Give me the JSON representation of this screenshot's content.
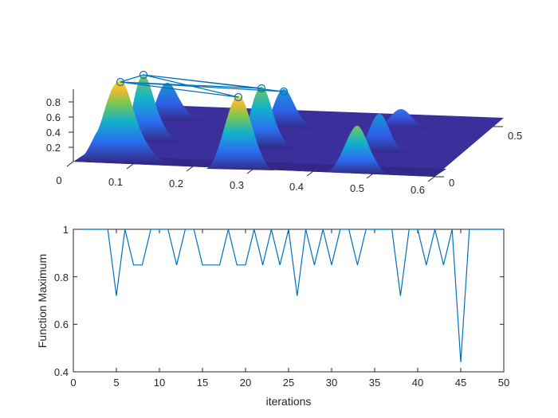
{
  "chart_data": [
    {
      "type": "surface3d",
      "title": "",
      "xlabel": "",
      "ylabel": "",
      "zlabel": "",
      "x_ticks": [
        "0",
        "0.1",
        "0.2",
        "0.3",
        "0.4",
        "0.5",
        "0.6"
      ],
      "y_ticks": [
        "0",
        "0.5"
      ],
      "z_ticks": [
        "0.2",
        "0.4",
        "0.6",
        "0.8"
      ],
      "xlim": [
        0,
        0.6
      ],
      "ylim": [
        0,
        0.6
      ],
      "zlim": [
        0,
        1
      ],
      "colormap": "parula",
      "peaks": [
        {
          "x": 0.075,
          "y": 0.1,
          "height": 1.0
        },
        {
          "x": 0.11,
          "y": 0.3,
          "height": 0.85
        },
        {
          "x": 0.14,
          "y": 0.5,
          "height": 0.72
        },
        {
          "x": 0.3,
          "y": 0.1,
          "height": 1.0
        },
        {
          "x": 0.34,
          "y": 0.3,
          "height": 0.85
        },
        {
          "x": 0.37,
          "y": 0.5,
          "height": 0.72
        },
        {
          "x": 0.52,
          "y": 0.1,
          "height": 0.6
        },
        {
          "x": 0.55,
          "y": 0.3,
          "height": 0.5
        },
        {
          "x": 0.58,
          "y": 0.5,
          "height": 0.4
        }
      ],
      "markers": {
        "style": "circle",
        "color": "#0072BD",
        "count": 5
      }
    },
    {
      "type": "line",
      "title": "",
      "xlabel": "iterations",
      "ylabel": "Function Maximum",
      "xlim": [
        0,
        50
      ],
      "ylim": [
        0.4,
        1
      ],
      "x_ticks": [
        0,
        5,
        10,
        15,
        20,
        25,
        30,
        35,
        40,
        45,
        50
      ],
      "y_ticks": [
        0.4,
        0.6,
        0.8,
        1
      ],
      "grid": false,
      "series": [
        {
          "name": "Function Maximum",
          "color": "#0072BD",
          "x": [
            1,
            2,
            3,
            4,
            5,
            6,
            7,
            8,
            9,
            10,
            11,
            12,
            13,
            14,
            15,
            16,
            17,
            18,
            19,
            20,
            21,
            22,
            23,
            24,
            25,
            26,
            27,
            28,
            29,
            30,
            31,
            32,
            33,
            34,
            35,
            36,
            37,
            38,
            39,
            40,
            41,
            42,
            43,
            44,
            45,
            46,
            47,
            48,
            49,
            50
          ],
          "values": [
            1,
            1,
            1,
            1,
            0.72,
            1,
            0.85,
            0.85,
            1,
            1,
            1,
            0.85,
            1,
            1,
            0.85,
            0.85,
            0.85,
            1,
            0.85,
            0.85,
            1,
            0.85,
            1,
            0.85,
            1,
            0.72,
            1,
            0.85,
            1,
            0.85,
            1,
            1,
            0.85,
            1,
            1,
            1,
            1,
            0.72,
            1,
            1,
            0.85,
            1,
            0.85,
            1,
            0.44,
            1,
            1,
            1,
            1,
            1
          ]
        }
      ]
    }
  ],
  "top_plot": {
    "z_tick_labels": [
      "0.8",
      "0.6",
      "0.4",
      "0.2"
    ],
    "x_tick_labels": [
      "0",
      "0.1",
      "0.2",
      "0.3",
      "0.4",
      "0.5",
      "0.6"
    ],
    "y_tick_labels": [
      "0",
      "0.5"
    ]
  },
  "bottom_plot": {
    "xlabel": "iterations",
    "ylabel": "Function Maximum",
    "x_tick_labels": [
      "0",
      "5",
      "10",
      "15",
      "20",
      "25",
      "30",
      "35",
      "40",
      "45",
      "50"
    ],
    "y_tick_labels": [
      "1",
      "0.8",
      "0.6",
      "0.4"
    ]
  }
}
